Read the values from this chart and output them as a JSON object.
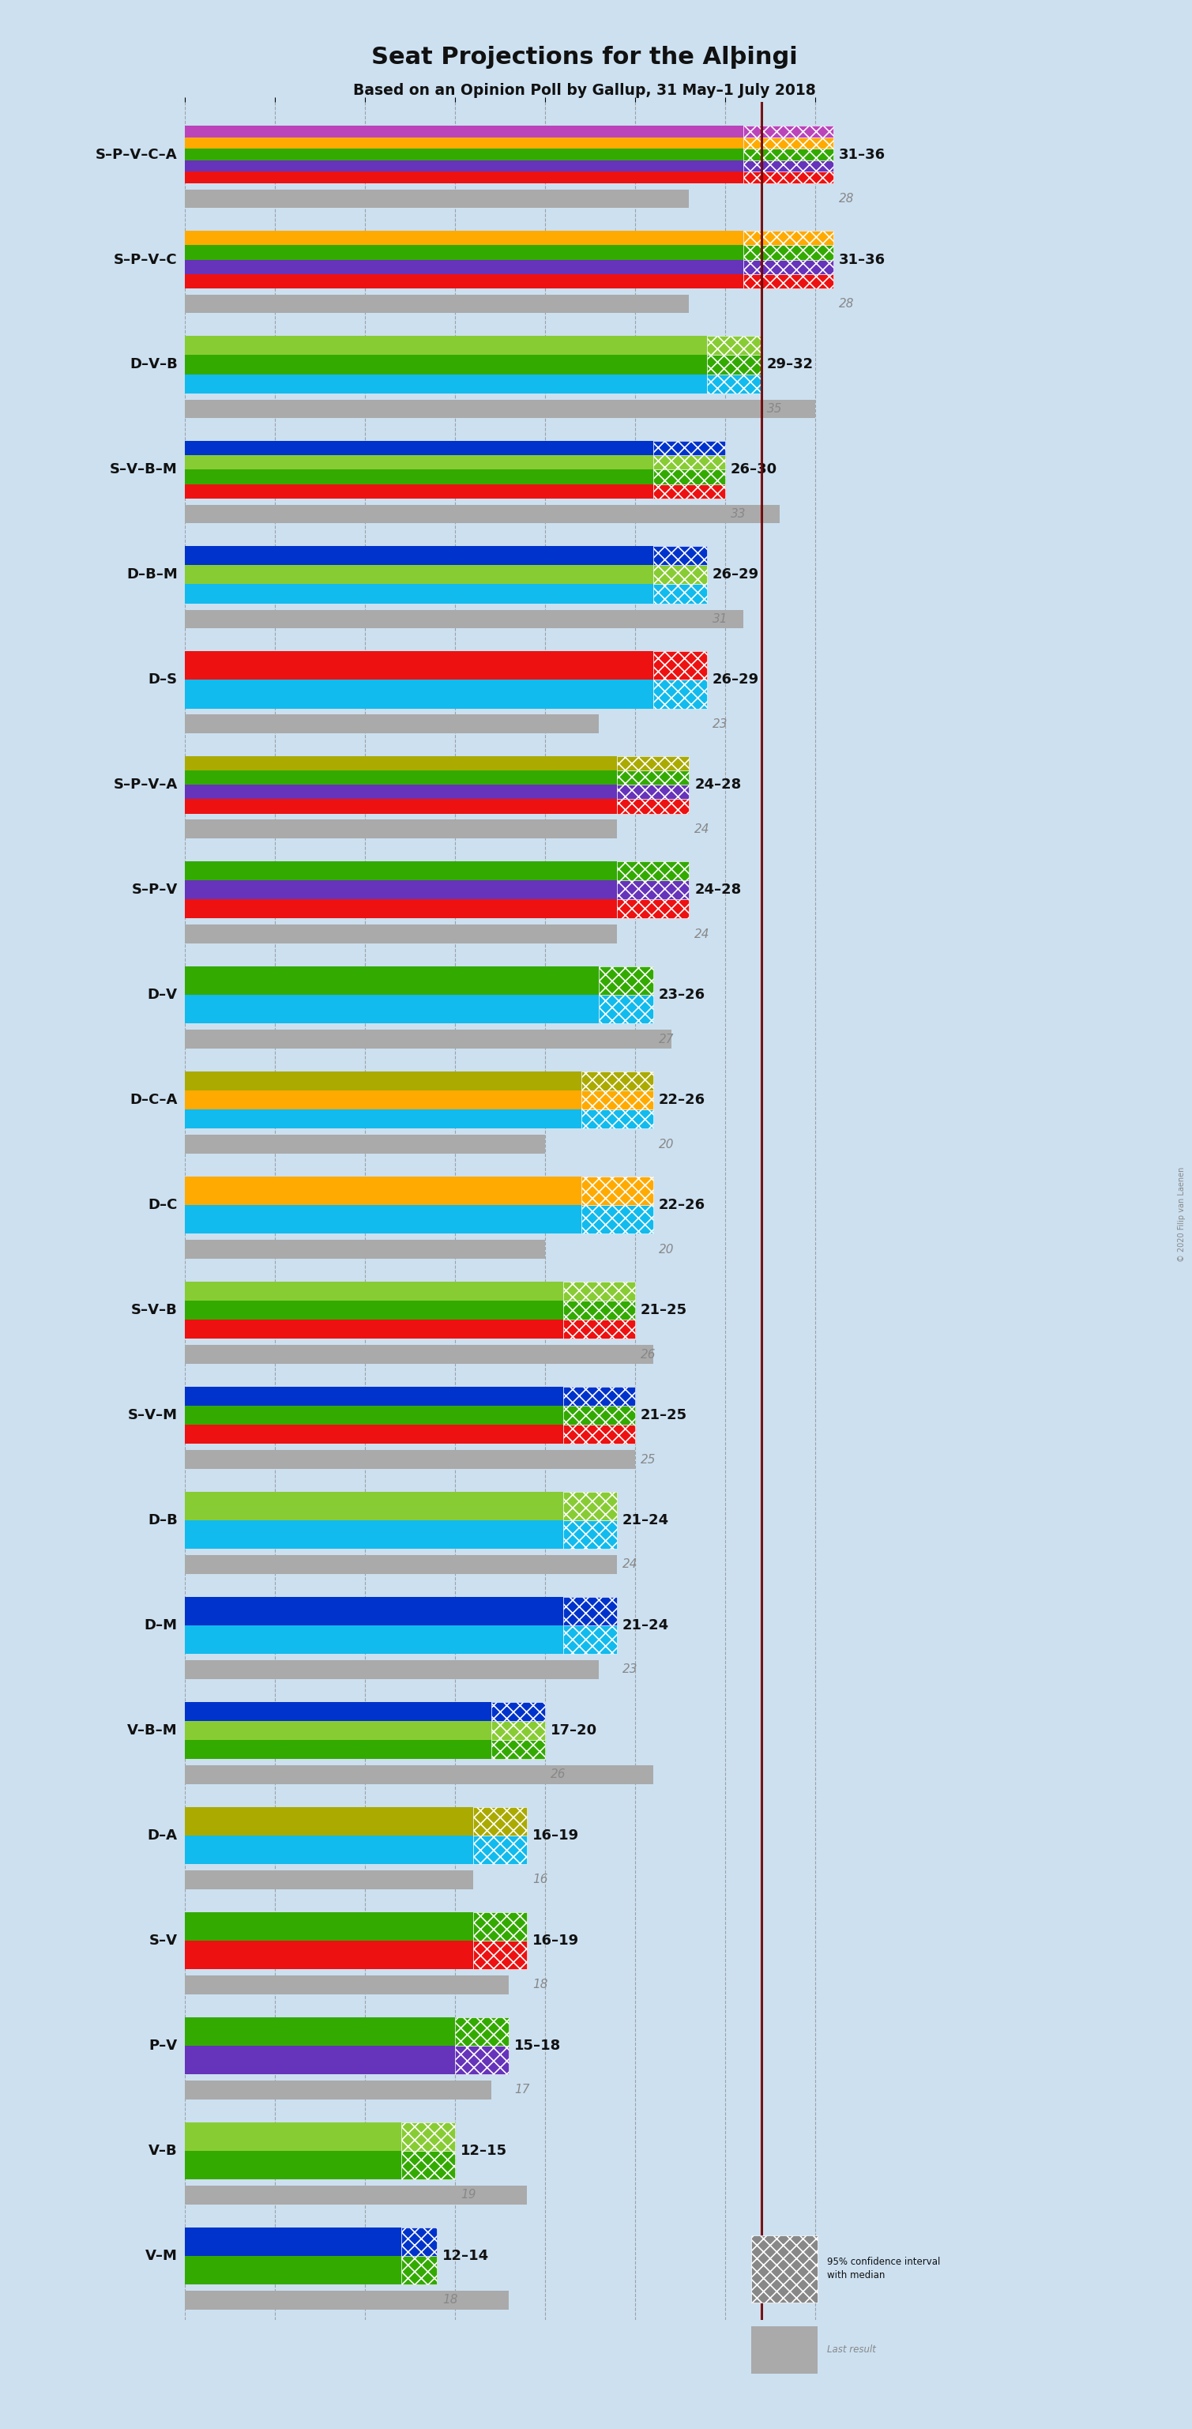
{
  "title": "Seat Projections for the Alþingi",
  "subtitle": "Based on an Opinion Poll by Gallup, 31 May–1 July 2018",
  "copyright": "© 2020 Filip van Laenen",
  "background_color": "#cce0f0",
  "coalitions": [
    {
      "name": "S–P–V–C–A",
      "low": 31,
      "high": 36,
      "last": 28,
      "colors": [
        "#ee1111",
        "#6633bb",
        "#33aa00",
        "#ffaa00",
        "#bb44bb"
      ]
    },
    {
      "name": "S–P–V–C",
      "low": 31,
      "high": 36,
      "last": 28,
      "colors": [
        "#ee1111",
        "#6633bb",
        "#33aa00",
        "#ffaa00"
      ]
    },
    {
      "name": "D–V–B",
      "low": 29,
      "high": 32,
      "last": 35,
      "colors": [
        "#11bbee",
        "#33aa00",
        "#88cc33"
      ]
    },
    {
      "name": "S–V–B–M",
      "low": 26,
      "high": 30,
      "last": 33,
      "colors": [
        "#ee1111",
        "#33aa00",
        "#88cc33",
        "#0033cc"
      ]
    },
    {
      "name": "D–B–M",
      "low": 26,
      "high": 29,
      "last": 31,
      "colors": [
        "#11bbee",
        "#88cc33",
        "#0033cc"
      ]
    },
    {
      "name": "D–S",
      "low": 26,
      "high": 29,
      "last": 23,
      "colors": [
        "#11bbee",
        "#ee1111"
      ]
    },
    {
      "name": "S–P–V–A",
      "low": 24,
      "high": 28,
      "last": 24,
      "colors": [
        "#ee1111",
        "#6633bb",
        "#33aa00",
        "#aaaa00"
      ]
    },
    {
      "name": "S–P–V",
      "low": 24,
      "high": 28,
      "last": 24,
      "colors": [
        "#ee1111",
        "#6633bb",
        "#33aa00"
      ]
    },
    {
      "name": "D–V",
      "low": 23,
      "high": 26,
      "last": 27,
      "colors": [
        "#11bbee",
        "#33aa00"
      ]
    },
    {
      "name": "D–C–A",
      "low": 22,
      "high": 26,
      "last": 20,
      "colors": [
        "#11bbee",
        "#ffaa00",
        "#aaaa00"
      ]
    },
    {
      "name": "D–C",
      "low": 22,
      "high": 26,
      "last": 20,
      "colors": [
        "#11bbee",
        "#ffaa00"
      ]
    },
    {
      "name": "S–V–B",
      "low": 21,
      "high": 25,
      "last": 26,
      "colors": [
        "#ee1111",
        "#33aa00",
        "#88cc33"
      ]
    },
    {
      "name": "S–V–M",
      "low": 21,
      "high": 25,
      "last": 25,
      "colors": [
        "#ee1111",
        "#33aa00",
        "#0033cc"
      ]
    },
    {
      "name": "D–B",
      "low": 21,
      "high": 24,
      "last": 24,
      "colors": [
        "#11bbee",
        "#88cc33"
      ]
    },
    {
      "name": "D–M",
      "low": 21,
      "high": 24,
      "last": 23,
      "colors": [
        "#11bbee",
        "#0033cc"
      ]
    },
    {
      "name": "V–B–M",
      "low": 17,
      "high": 20,
      "last": 26,
      "colors": [
        "#33aa00",
        "#88cc33",
        "#0033cc"
      ]
    },
    {
      "name": "D–A",
      "low": 16,
      "high": 19,
      "last": 16,
      "colors": [
        "#11bbee",
        "#aaaa00"
      ]
    },
    {
      "name": "S–V",
      "low": 16,
      "high": 19,
      "last": 18,
      "colors": [
        "#ee1111",
        "#33aa00"
      ]
    },
    {
      "name": "P–V",
      "low": 15,
      "high": 18,
      "last": 17,
      "colors": [
        "#6633bb",
        "#33aa00"
      ]
    },
    {
      "name": "V–B",
      "low": 12,
      "high": 15,
      "last": 19,
      "colors": [
        "#33aa00",
        "#88cc33"
      ]
    },
    {
      "name": "V–M",
      "low": 12,
      "high": 14,
      "last": 18,
      "colors": [
        "#33aa00",
        "#0033cc"
      ]
    }
  ],
  "xmax": 36,
  "majority_line": 32,
  "seats_per_unit": 1,
  "legend_ci_text": "95% confidence interval\nwith median",
  "legend_last_text": "Last result"
}
